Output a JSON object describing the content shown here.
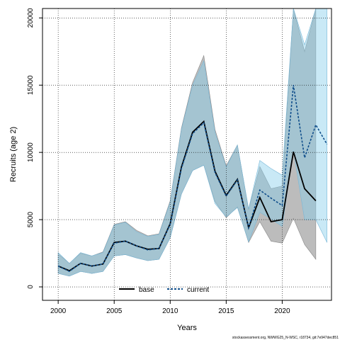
{
  "chart_data": {
    "type": "area",
    "xlabel": "Years",
    "ylabel": "Recruits (age 2)",
    "xlim": [
      1998.6,
      2024.4
    ],
    "ylim": [
      -1000,
      20700
    ],
    "xticks": [
      2000,
      2005,
      2010,
      2015,
      2020
    ],
    "yticks": [
      0,
      5000,
      10000,
      15000,
      20000
    ],
    "grid": true,
    "legend_position": "bottom-center",
    "credit": "stockassessment.org, NWWG25_N-WSC, r18734, git:7e947dec851",
    "colors": {
      "base_band": "#a6a6a6",
      "base_line": "#000000",
      "current_band": "#87ceeb",
      "current_line": "#104e8b",
      "grid": "#000000"
    },
    "series": [
      {
        "name": "base",
        "line_style": "solid",
        "x": [
          2000,
          2001,
          2002,
          2003,
          2004,
          2005,
          2006,
          2007,
          2008,
          2009,
          2010,
          2011,
          2012,
          2013,
          2014,
          2015,
          2016,
          2017,
          2018,
          2019,
          2020,
          2021,
          2022,
          2023
        ],
        "values": [
          1550,
          1200,
          1750,
          1550,
          1700,
          3300,
          3400,
          3050,
          2800,
          2850,
          4700,
          8900,
          11500,
          12300,
          8600,
          6800,
          8000,
          4400,
          6650,
          4850,
          5000,
          10050,
          7300,
          6400
        ],
        "lower": [
          1000,
          800,
          1150,
          1000,
          1150,
          2300,
          2400,
          2150,
          1950,
          2050,
          3650,
          6900,
          8650,
          9050,
          6350,
          5150,
          5950,
          3300,
          4850,
          3400,
          3250,
          5100,
          3150,
          2050
        ],
        "upper": [
          2450,
          1750,
          2500,
          2300,
          2600,
          4650,
          4850,
          4200,
          3800,
          3950,
          6400,
          11800,
          15200,
          17200,
          11700,
          9000,
          10550,
          5750,
          8950,
          7300,
          7500,
          20700,
          17500,
          20700
        ]
      },
      {
        "name": "current",
        "line_style": "dashed",
        "x": [
          2000,
          2001,
          2002,
          2003,
          2004,
          2005,
          2006,
          2007,
          2008,
          2009,
          2010,
          2011,
          2012,
          2013,
          2014,
          2015,
          2016,
          2017,
          2018,
          2019,
          2020,
          2021,
          2022,
          2023,
          2024
        ],
        "values": [
          1550,
          1150,
          1750,
          1550,
          1700,
          3250,
          3400,
          3050,
          2750,
          2850,
          4650,
          8800,
          11400,
          12200,
          8500,
          6750,
          7950,
          4400,
          7200,
          6600,
          6050,
          15000,
          9600,
          12050,
          10600
        ],
        "lower": [
          1000,
          800,
          1150,
          1000,
          1150,
          2300,
          2400,
          2150,
          1950,
          2050,
          3650,
          6900,
          8650,
          9050,
          6200,
          5200,
          5900,
          3350,
          5550,
          5050,
          4500,
          10150,
          5000,
          5000,
          3300
        ],
        "upper": [
          2550,
          1750,
          2550,
          2300,
          2550,
          4600,
          4800,
          4100,
          3750,
          3900,
          6300,
          11700,
          15000,
          16800,
          11500,
          8900,
          10550,
          5800,
          9400,
          8800,
          8300,
          20700,
          18000,
          20700,
          20700
        ]
      }
    ]
  }
}
